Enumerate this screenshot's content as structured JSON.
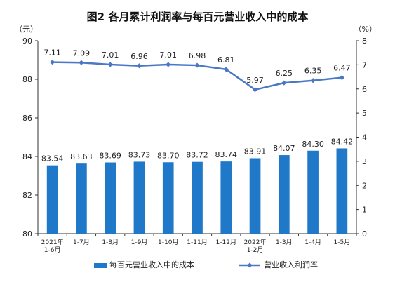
{
  "chart_data": {
    "type": "bar+line",
    "title": "图2  各月累计利润率与每百元营业收入中的成本",
    "left_unit": "（元）",
    "right_unit": "（%）",
    "categories": [
      [
        "2021年",
        "1-6月"
      ],
      [
        "1-7月"
      ],
      [
        "1-8月"
      ],
      [
        "1-9月"
      ],
      [
        "1-10月"
      ],
      [
        "1-11月"
      ],
      [
        "1-12月"
      ],
      [
        "2022年",
        "1-2月"
      ],
      [
        "1-3月"
      ],
      [
        "1-4月"
      ],
      [
        "1-5月"
      ]
    ],
    "series": [
      {
        "name": "每百元营业收入中的成本",
        "type": "bar",
        "axis": "left",
        "color": "#1f78c8",
        "values": [
          83.54,
          83.63,
          83.69,
          83.73,
          83.7,
          83.72,
          83.74,
          83.91,
          84.07,
          84.3,
          84.42
        ],
        "labels": [
          "83.54",
          "83.63",
          "83.69",
          "83.73",
          "83.70",
          "83.72",
          "83.74",
          "83.91",
          "84.07",
          "84.30",
          "84.42"
        ]
      },
      {
        "name": "营业收入利润率",
        "type": "line",
        "axis": "right",
        "color": "#4a78c6",
        "values": [
          7.11,
          7.09,
          7.01,
          6.96,
          7.01,
          6.98,
          6.81,
          5.97,
          6.25,
          6.35,
          6.47
        ],
        "labels": [
          "7.11",
          "7.09",
          "7.01",
          "6.96",
          "7.01",
          "6.98",
          "6.81",
          "5.97",
          "6.25",
          "6.35",
          "6.47"
        ]
      }
    ],
    "y_left": {
      "min": 80,
      "max": 90,
      "ticks": [
        80,
        82,
        84,
        86,
        88,
        90
      ]
    },
    "y_right": {
      "min": 0,
      "max": 8,
      "ticks": [
        0,
        1,
        2,
        3,
        4,
        5,
        6,
        7,
        8
      ]
    },
    "grid": false,
    "legend_position": "bottom"
  }
}
